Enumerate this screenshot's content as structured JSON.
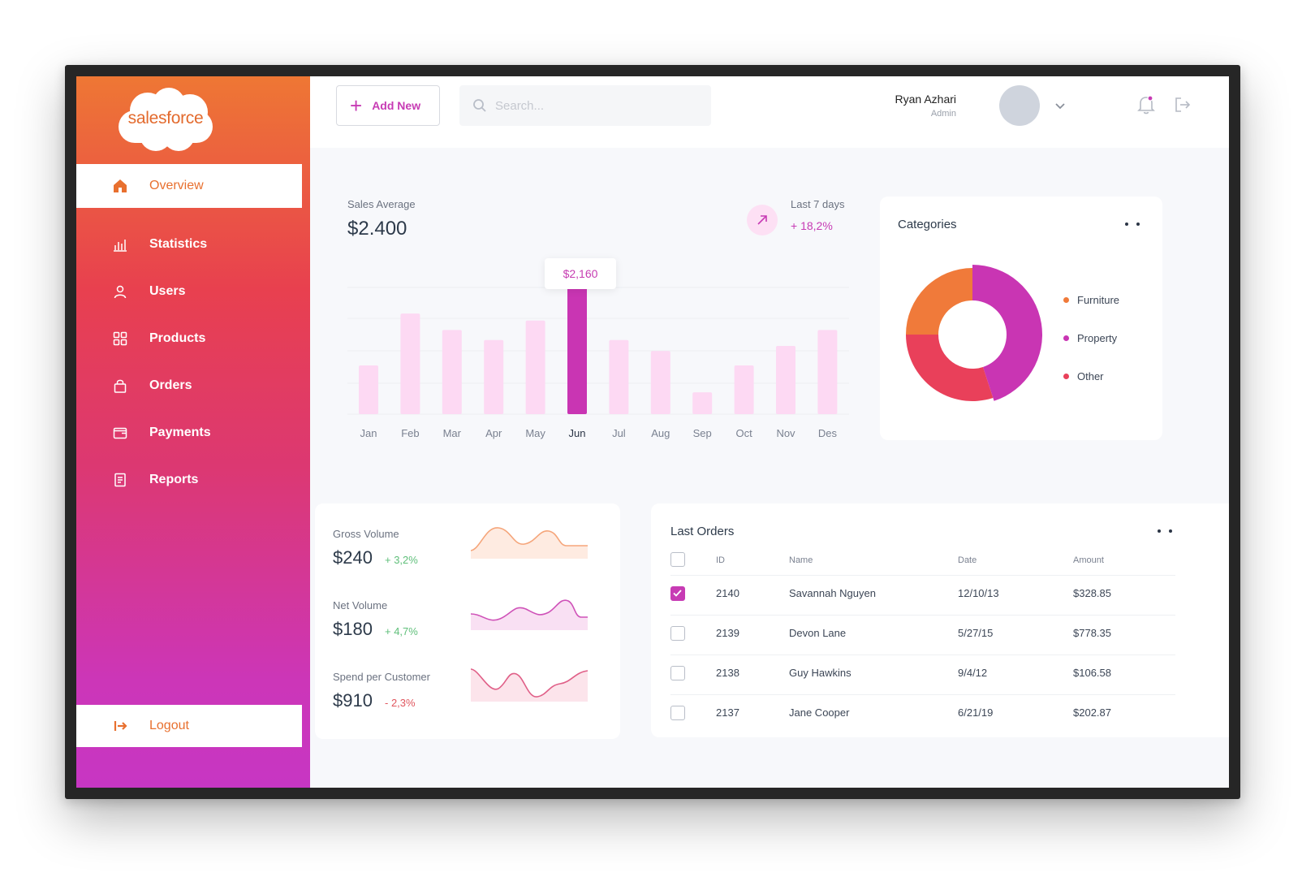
{
  "brand": {
    "logo_text": "salesforce"
  },
  "sidebar": {
    "items": [
      {
        "label": "Overview",
        "icon": "home-icon"
      },
      {
        "label": "Statistics",
        "icon": "bar-chart-icon"
      },
      {
        "label": "Users",
        "icon": "user-icon"
      },
      {
        "label": "Products",
        "icon": "grid-icon"
      },
      {
        "label": "Orders",
        "icon": "shopping-bag-icon"
      },
      {
        "label": "Payments",
        "icon": "wallet-icon"
      },
      {
        "label": "Reports",
        "icon": "document-icon"
      }
    ],
    "logout_label": "Logout"
  },
  "topbar": {
    "add_label": "Add New",
    "search_placeholder": "Search...",
    "user_name": "Ryan Azhari",
    "user_role": "Admin"
  },
  "sales": {
    "label": "Sales Average",
    "value": "$2.400",
    "period": "Last 7 days",
    "change": "+ 18,2%",
    "tooltip": "$2,160"
  },
  "chart_data": [
    {
      "type": "bar",
      "categories": [
        "Jan",
        "Feb",
        "Mar",
        "Apr",
        "May",
        "Jun",
        "Jul",
        "Aug",
        "Sep",
        "Oct",
        "Nov",
        "Des"
      ],
      "values": [
        1250,
        2580,
        2160,
        1900,
        2400,
        3300,
        1900,
        1620,
        560,
        1250,
        1750,
        2160
      ],
      "highlight_index": 5,
      "ylim": [
        0,
        4000
      ],
      "grid": true,
      "colors": {
        "bar": "#fdd9f3",
        "highlight": "#c935b3"
      }
    },
    {
      "type": "pie",
      "title": "Categories",
      "categories": [
        "Furniture",
        "Property",
        "Other"
      ],
      "values": [
        25,
        45,
        30
      ],
      "colors": [
        "#f07a3a",
        "#c935b3",
        "#e9405a"
      ]
    }
  ],
  "categories_card": {
    "title": "Categories"
  },
  "metrics": [
    {
      "label": "Gross Volume",
      "value": "$240",
      "change": "+ 3,2%",
      "positive": true
    },
    {
      "label": "Net Volume",
      "value": "$180",
      "change": "+ 4,7%",
      "positive": true
    },
    {
      "label": "Spend per Customer",
      "value": "$910",
      "change": "- 2,3%",
      "positive": false
    }
  ],
  "orders": {
    "title": "Last Orders",
    "headers": [
      "ID",
      "Name",
      "Date",
      "Amount"
    ],
    "rows": [
      {
        "id": "2140",
        "name": "Savannah Nguyen",
        "date": "12/10/13",
        "amount": "$328.85",
        "checked": true
      },
      {
        "id": "2139",
        "name": "Devon Lane",
        "date": "5/27/15",
        "amount": "$778.35",
        "checked": false
      },
      {
        "id": "2138",
        "name": "Guy Hawkins",
        "date": "9/4/12",
        "amount": "$106.58",
        "checked": false
      },
      {
        "id": "2137",
        "name": "Jane Cooper",
        "date": "6/21/19",
        "amount": "$202.87",
        "checked": false
      }
    ]
  },
  "colors": {
    "accent": "#c73bb4",
    "orange": "#e8702f",
    "positive": "#5fbf7a",
    "negative": "#e0565e"
  }
}
